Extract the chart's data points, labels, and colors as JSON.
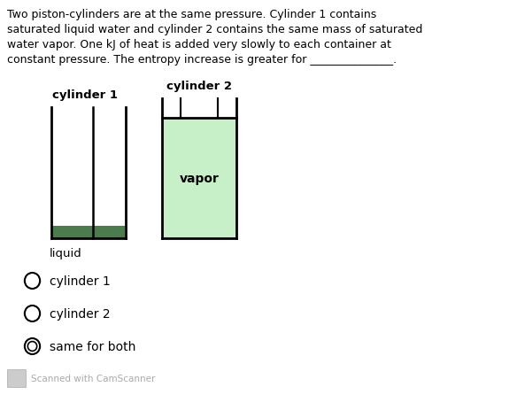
{
  "background_color": "#ffffff",
  "text_color": "#000000",
  "paragraph_lines": [
    "Two piston-cylinders are at the same pressure. Cylinder 1 contains",
    "saturated liquid water and cylinder 2 contains the same mass of saturated",
    "water vapor. One kJ of heat is added very slowly to each container at",
    "constant pressure. The entropy increase is greater for _______________."
  ],
  "cyl1_label": "cylinder 1",
  "cyl2_label": "cylinder 2",
  "liquid_label": "liquid",
  "vapor_label": "vapor",
  "option1": "cylinder 1",
  "option2": "cylinder 2",
  "option3": "same for both",
  "camscanner_text": "Scanned with CamScanner",
  "cyl1_liquid_color": "#4a7c4e",
  "cyl2_vapor_color": "#c8f0c8",
  "wall_lw": 2.0,
  "inner_lw": 1.8,
  "font_size_paragraph": 9.0,
  "font_size_labels": 9.5,
  "font_size_vapor": 10,
  "font_size_options": 10,
  "font_size_cam": 7.5
}
